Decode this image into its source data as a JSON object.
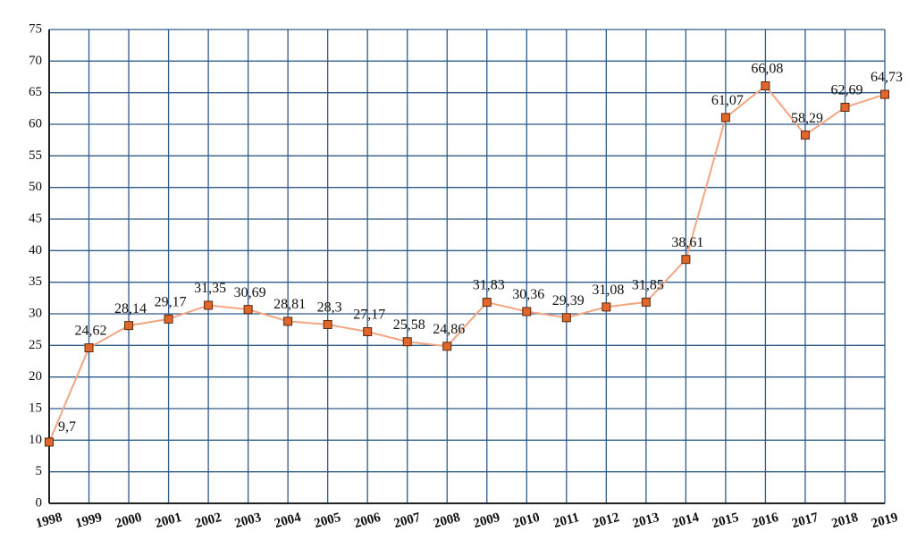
{
  "chart_data": {
    "type": "line",
    "categories": [
      "1998",
      "1999",
      "2000",
      "2001",
      "2002",
      "2003",
      "2004",
      "2005",
      "2006",
      "2007",
      "2008",
      "2009",
      "2010",
      "2011",
      "2012",
      "2013",
      "2014",
      "2015",
      "2016",
      "2017",
      "2018",
      "2019"
    ],
    "values": [
      9.7,
      24.62,
      28.14,
      29.17,
      31.35,
      30.69,
      28.81,
      28.3,
      27.17,
      25.58,
      24.86,
      31.83,
      30.36,
      29.39,
      31.08,
      31.85,
      38.61,
      61.07,
      66.08,
      58.29,
      62.69,
      64.73
    ],
    "value_labels": [
      "9,7",
      "24,62",
      "28,14",
      "29,17",
      "31,35",
      "30,69",
      "28,81",
      "28,3",
      "27,17",
      "25,58",
      "24,86",
      "31,83",
      "30,36",
      "29,39",
      "31,08",
      "31,85",
      "38,61",
      "61,07",
      "66,08",
      "58,29",
      "62,69",
      "64,73"
    ],
    "color": "#f4a582",
    "marker_color": "#e0662a",
    "ylim": [
      0,
      75
    ],
    "yticks": [
      0,
      5,
      10,
      15,
      20,
      25,
      30,
      35,
      40,
      45,
      50,
      55,
      60,
      65,
      70,
      75
    ],
    "grid": true
  }
}
